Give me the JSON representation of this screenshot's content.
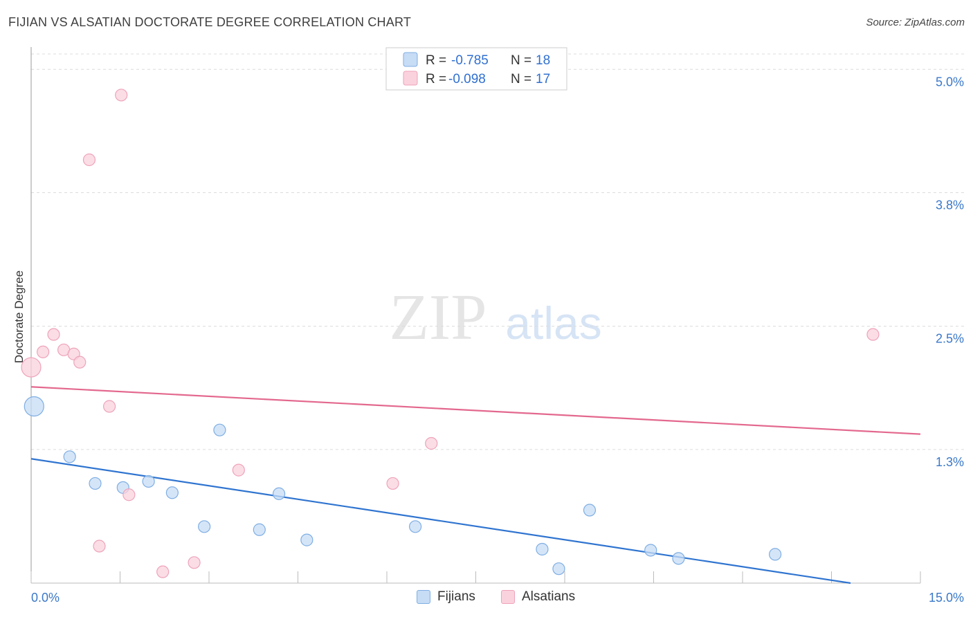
{
  "header": {
    "title": "FIJIAN VS ALSATIAN DOCTORATE DEGREE CORRELATION CHART",
    "source": "Source: ZipAtlas.com"
  },
  "watermark": {
    "zip": "ZIP",
    "atlas": "atlas"
  },
  "legend": {
    "rows": [
      {
        "r_label": "R =",
        "r_value": "-0.785",
        "n_label": "N =",
        "n_value": "18"
      },
      {
        "r_label": "R =",
        "r_value": "-0.098",
        "n_label": "N =",
        "n_value": "17"
      }
    ]
  },
  "chart_data": {
    "type": "scatter",
    "title": "FIJIAN VS ALSATIAN DOCTORATE DEGREE CORRELATION CHART",
    "xlabel": "",
    "ylabel": "Doctorate Degree",
    "xlim": [
      0,
      15
    ],
    "ylim": [
      0,
      5.15
    ],
    "x_tick_labels": [
      "0.0%",
      "15.0%"
    ],
    "y_ticks": [
      1.3,
      2.5,
      3.8,
      5.0
    ],
    "y_tick_labels": [
      "1.3%",
      "2.5%",
      "3.8%",
      "5.0%"
    ],
    "grid": true,
    "colors": {
      "fijians_fill": "#c7dcf5",
      "fijians_stroke": "#7eaee3",
      "fijians_line": "#2f74d0",
      "alsatians_fill": "#fad2de",
      "alsatians_stroke": "#eea3b9",
      "alsatians_line": "#e3688e",
      "axis_label": "#3a78c9"
    },
    "series": [
      {
        "name": "Fijians",
        "points": [
          {
            "x": 0.05,
            "y": 1.72,
            "big": true
          },
          {
            "x": 0.65,
            "y": 1.23
          },
          {
            "x": 1.08,
            "y": 0.97
          },
          {
            "x": 1.55,
            "y": 0.93
          },
          {
            "x": 1.98,
            "y": 0.99
          },
          {
            "x": 2.38,
            "y": 0.88
          },
          {
            "x": 2.92,
            "y": 0.55
          },
          {
            "x": 3.18,
            "y": 1.49
          },
          {
            "x": 3.85,
            "y": 0.52
          },
          {
            "x": 4.18,
            "y": 0.87
          },
          {
            "x": 4.65,
            "y": 0.42
          },
          {
            "x": 6.48,
            "y": 0.55
          },
          {
            "x": 8.62,
            "y": 0.33
          },
          {
            "x": 8.9,
            "y": 0.14
          },
          {
            "x": 9.42,
            "y": 0.71
          },
          {
            "x": 10.45,
            "y": 0.32
          },
          {
            "x": 10.92,
            "y": 0.24
          },
          {
            "x": 12.55,
            "y": 0.28
          }
        ],
        "trend": [
          [
            0,
            1.21
          ],
          [
            14.05,
            -0.02
          ]
        ]
      },
      {
        "name": "Alsatians",
        "points": [
          {
            "x": 0.0,
            "y": 2.1,
            "big": true
          },
          {
            "x": 0.2,
            "y": 2.25
          },
          {
            "x": 0.38,
            "y": 2.42
          },
          {
            "x": 0.55,
            "y": 2.27
          },
          {
            "x": 0.72,
            "y": 2.23
          },
          {
            "x": 0.82,
            "y": 2.15
          },
          {
            "x": 0.98,
            "y": 4.12
          },
          {
            "x": 1.15,
            "y": 0.36
          },
          {
            "x": 1.32,
            "y": 1.72
          },
          {
            "x": 1.52,
            "y": 4.75
          },
          {
            "x": 1.65,
            "y": 0.86
          },
          {
            "x": 2.22,
            "y": 0.11
          },
          {
            "x": 2.75,
            "y": 0.2
          },
          {
            "x": 3.5,
            "y": 1.1
          },
          {
            "x": 6.1,
            "y": 0.97
          },
          {
            "x": 6.75,
            "y": 1.36
          },
          {
            "x": 14.2,
            "y": 2.42
          }
        ],
        "trend": [
          [
            0,
            1.91
          ],
          [
            15,
            1.45
          ]
        ]
      }
    ]
  }
}
